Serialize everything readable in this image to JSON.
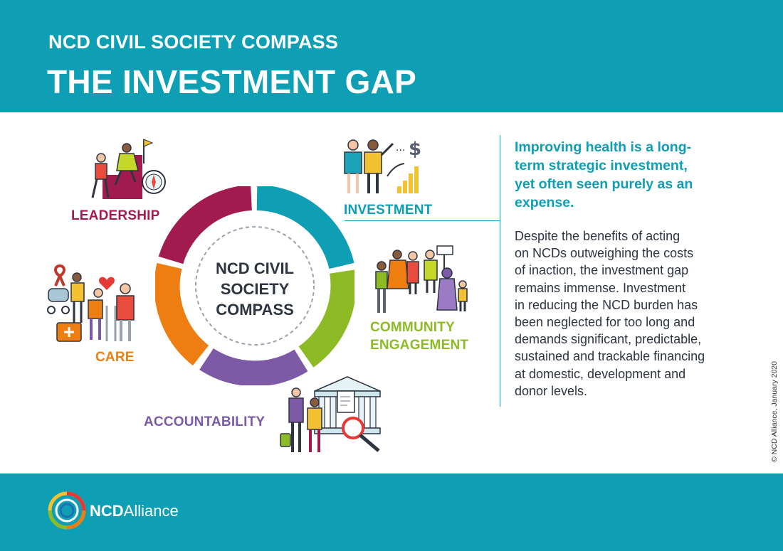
{
  "header": {
    "kicker": "NCD CIVIL SOCIETY COMPASS",
    "title": "THE INVESTMENT GAP",
    "background_color": "#0e9fb4"
  },
  "compass": {
    "center_lines": [
      "NCD CIVIL",
      "SOCIETY",
      "COMPASS"
    ],
    "segments": [
      {
        "label": "LEADERSHIP",
        "color": "#a21b4e",
        "icon": "leadership-figures-icon"
      },
      {
        "label": "INVESTMENT",
        "color": "#0e9fb4",
        "icon": "investment-figures-icon"
      },
      {
        "label": "COMMUNITY",
        "label_line2": "ENGAGEMENT",
        "color": "#8dbb25",
        "icon": "community-figures-icon"
      },
      {
        "label": "ACCOUNTABILITY",
        "color": "#7c5aa6",
        "icon": "accountability-figures-icon"
      },
      {
        "label": "CARE",
        "color": "#ee7d12",
        "icon": "care-figures-icon"
      }
    ]
  },
  "content": {
    "lead_lines": [
      "Improving health is a long-",
      "term strategic investment,",
      "yet often seen purely as an",
      "expense."
    ],
    "body_lines": [
      "Despite the benefits of acting",
      "on NCDs outweighing the costs",
      "of inaction, the investment gap",
      "remains immense. Investment",
      "in reducing the NCD burden has",
      "been neglected for too long and",
      "demands significant, predictable,",
      "sustained and trackable financing",
      "at domestic, development and",
      "donor levels."
    ]
  },
  "copyright": "© NCD Alliance, January 2020",
  "footer": {
    "logo_bold": "NCD",
    "logo_rest": "Alliance",
    "logo_icon": "ncd-alliance-ring-logo"
  }
}
